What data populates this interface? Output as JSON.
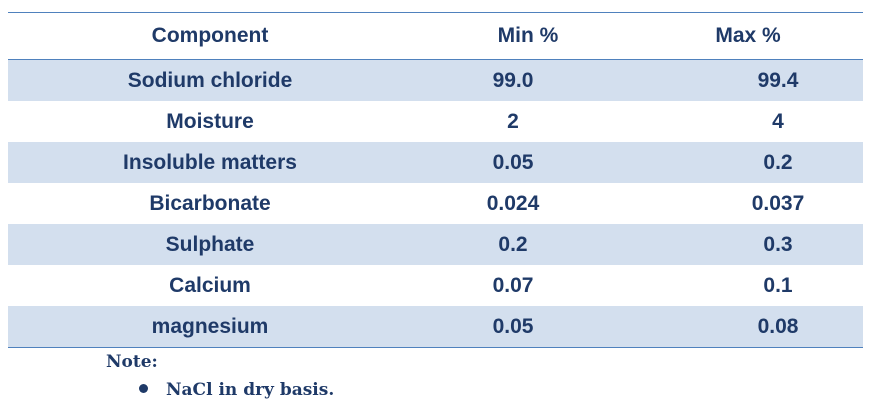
{
  "table": {
    "headers": [
      "Component",
      "Min %",
      "Max %"
    ],
    "rows": [
      [
        "Sodium chloride",
        "99.0",
        "99.4"
      ],
      [
        "Moisture",
        "2",
        "4"
      ],
      [
        "Insoluble matters",
        "0.05",
        "0.2"
      ],
      [
        "Bicarbonate",
        "0.024",
        "0.037"
      ],
      [
        "Sulphate",
        "0.2",
        "0.3"
      ],
      [
        "Calcium",
        "0.07",
        "0.1"
      ],
      [
        "magnesium",
        "0.05",
        "0.08"
      ]
    ]
  },
  "note": {
    "title": "Note:",
    "items": [
      "NaCl in dry basis."
    ]
  },
  "colors": {
    "text": "#1f3a68",
    "band": "#d3dfee",
    "rule": "#4f81bd"
  }
}
